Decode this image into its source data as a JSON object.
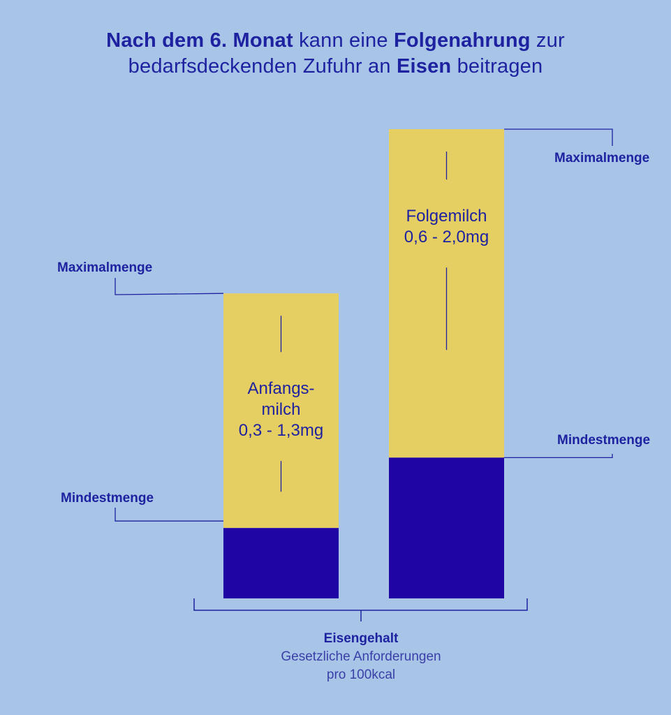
{
  "headline": {
    "line1": [
      {
        "text": "Nach dem 6. Monat",
        "bold": true
      },
      {
        "text": " kann eine ",
        "bold": false
      },
      {
        "text": "Folgenahrung",
        "bold": true
      },
      {
        "text": " zur",
        "bold": false
      }
    ],
    "line2": [
      {
        "text": "bedarfsdeckenden Zufuhr an ",
        "bold": false
      },
      {
        "text": "Eisen",
        "bold": true
      },
      {
        "text": " beitragen",
        "bold": false
      }
    ]
  },
  "colors": {
    "background": "#a8c5e8",
    "range": "#e6cf62",
    "minimum": "#1f05a3",
    "text": "#1e22a0"
  },
  "chart_data": {
    "type": "bar",
    "unit": "mg",
    "ylim": [
      0,
      2.0
    ],
    "bars": [
      {
        "label_lines": [
          "Anfangs-",
          "milch",
          "0,3 - 1,3mg"
        ],
        "min": 0.3,
        "max": 1.3,
        "min_label": "Mindestmenge",
        "max_label": "Maximalmenge"
      },
      {
        "label_lines": [
          "Folgemilch",
          "0,6 - 2,0mg"
        ],
        "min": 0.6,
        "max": 2.0,
        "min_label": "Mindestmenge",
        "max_label": "Maximalmenge"
      }
    ],
    "axis_title": "Eisengehalt",
    "axis_subtitle": [
      "Gesetzliche Anforderungen",
      "pro 100kcal"
    ]
  }
}
